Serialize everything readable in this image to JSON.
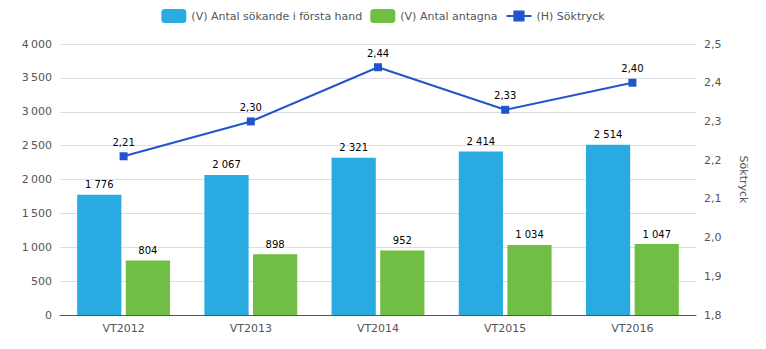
{
  "chart_data": {
    "type": "bar",
    "categories": [
      "VT2012",
      "VT2013",
      "VT2014",
      "VT2015",
      "VT2016"
    ],
    "series": [
      {
        "name": "(V) Antal sökande i första hand",
        "type": "bar",
        "color": "#29ABE2",
        "values": [
          1776,
          2067,
          2321,
          2414,
          2514
        ],
        "value_labels": [
          "1 776",
          "2 067",
          "2 321",
          "2 414",
          "2 514"
        ]
      },
      {
        "name": "(V) Antal antagna",
        "type": "bar",
        "color": "#70BF44",
        "values": [
          804,
          898,
          952,
          1034,
          1047
        ],
        "value_labels": [
          "804",
          "898",
          "952",
          "1 034",
          "1 047"
        ]
      },
      {
        "name": "(H) Söktryck",
        "type": "line",
        "axis": "y2",
        "color": "#2255CC",
        "marker": "square",
        "values": [
          2.21,
          2.3,
          2.44,
          2.33,
          2.4
        ],
        "value_labels": [
          "2,21",
          "2,30",
          "2,44",
          "2,33",
          "2,40"
        ]
      }
    ],
    "ylim": [
      0,
      4000
    ],
    "yticks": [
      0,
      500,
      {
        "value": 1000,
        "label": "1 000"
      },
      {
        "value": 1500,
        "label": "1 500"
      },
      {
        "value": 2000,
        "label": "2 000"
      },
      {
        "value": 2500,
        "label": "2 500"
      },
      {
        "value": 3000,
        "label": "3 000"
      },
      {
        "value": 3500,
        "label": "3 500"
      },
      {
        "value": 4000,
        "label": "4 000"
      }
    ],
    "y2lim": [
      1.8,
      2.5
    ],
    "y2ticks": [
      {
        "value": 1.8,
        "label": "1,8"
      },
      {
        "value": 1.9,
        "label": "1,9"
      },
      {
        "value": 2.0,
        "label": "2,0"
      },
      {
        "value": 2.1,
        "label": "2,1"
      },
      {
        "value": 2.2,
        "label": "2,2"
      },
      {
        "value": 2.3,
        "label": "2,3"
      },
      {
        "value": 2.4,
        "label": "2,4"
      },
      {
        "value": 2.5,
        "label": "2,5"
      }
    ],
    "y2label": "Söktryck",
    "grid": true,
    "legend": "top",
    "data_labels": true
  }
}
